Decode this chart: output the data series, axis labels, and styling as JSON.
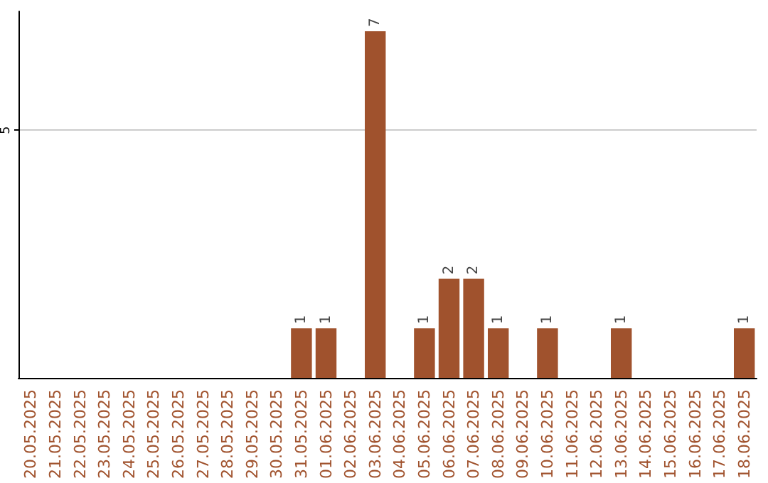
{
  "chart_data": {
    "type": "bar",
    "categories": [
      "20.05.2025",
      "21.05.2025",
      "22.05.2025",
      "23.05.2025",
      "24.05.2025",
      "25.05.2025",
      "26.05.2025",
      "27.05.2025",
      "28.05.2025",
      "29.05.2025",
      "30.05.2025",
      "31.05.2025",
      "01.06.2025",
      "02.06.2025",
      "03.06.2025",
      "04.06.2025",
      "05.06.2025",
      "06.06.2025",
      "07.06.2025",
      "08.06.2025",
      "09.06.2025",
      "10.06.2025",
      "11.06.2025",
      "12.06.2025",
      "13.06.2025",
      "14.06.2025",
      "15.06.2025",
      "16.06.2025",
      "17.06.2025",
      "18.06.2025"
    ],
    "values": [
      0,
      0,
      0,
      0,
      0,
      0,
      0,
      0,
      0,
      0,
      0,
      1,
      1,
      0,
      7,
      0,
      1,
      2,
      2,
      1,
      0,
      1,
      0,
      0,
      1,
      0,
      0,
      0,
      0,
      1
    ],
    "value_labels": [
      null,
      null,
      null,
      null,
      null,
      null,
      null,
      null,
      null,
      null,
      null,
      "1",
      "1",
      null,
      "7",
      null,
      "1",
      "2",
      "2",
      "1",
      null,
      "1",
      null,
      null,
      "1",
      null,
      null,
      null,
      null,
      "1"
    ],
    "color": "#a0522d",
    "ylim": [
      0,
      7.4
    ],
    "yticks": [
      5
    ],
    "grid": "y"
  }
}
